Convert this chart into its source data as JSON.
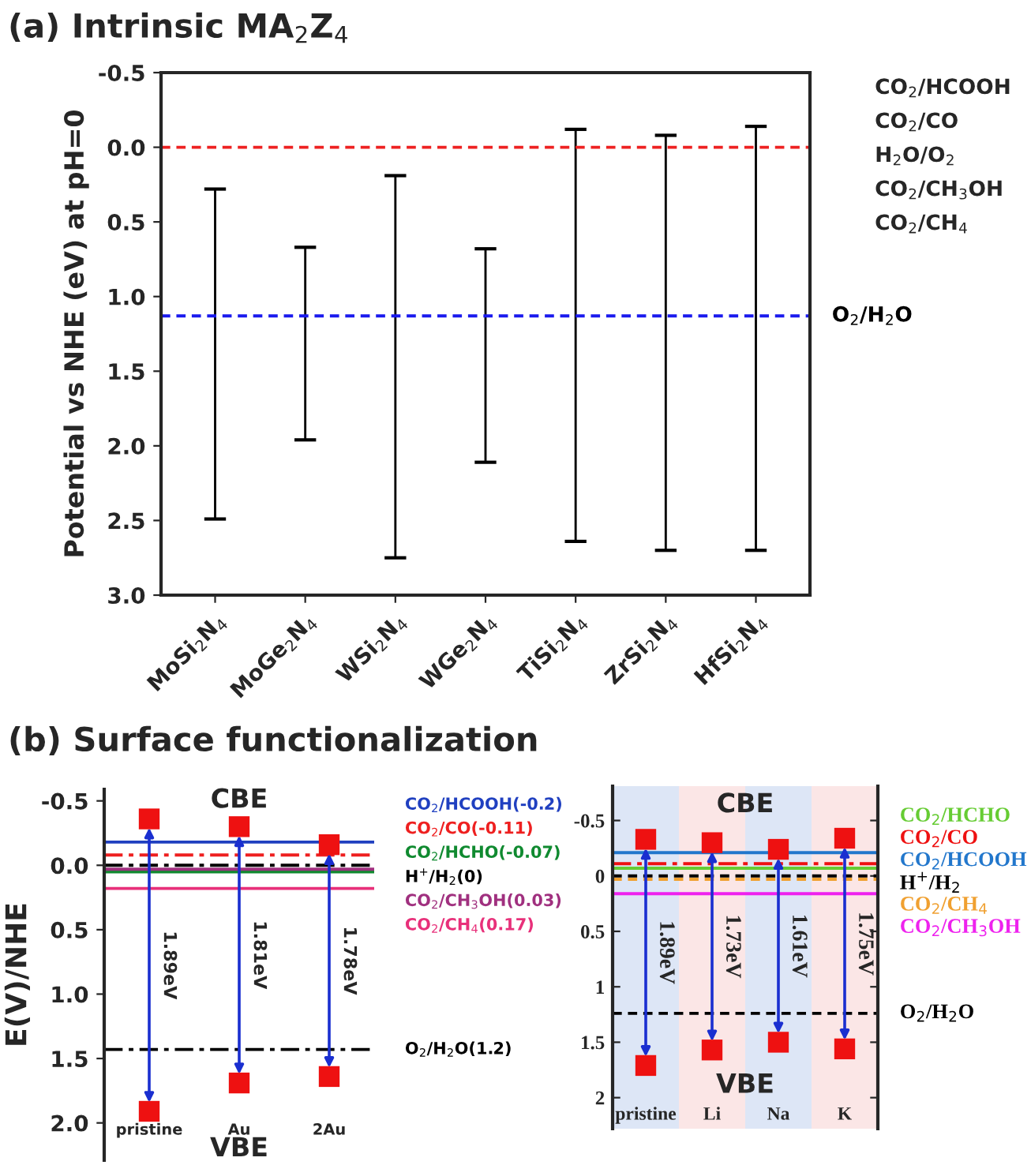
{
  "chart_data": [
    {
      "type": "bar",
      "title": "(a) Intrinsic MA$_{2}$Z$_{4}$",
      "ylabel": "Potential vs NHE (eV) at pH=0",
      "categories": [
        "MoSi$_{2}$N$_{4}$",
        "MoGe$_{2}$N$_{4}$",
        "WSi$_{2}$N$_{4}$",
        "WGe$_{2}$N$_{4}$",
        "TiSi$_{2}$N$_{4}$",
        "ZrSi$_{2}$N$_{4}$",
        "HfSi$_{2}$N$_{4}$"
      ],
      "base": [
        0.28,
        0.67,
        0.19,
        0.68,
        -0.12,
        -0.08,
        -0.14
      ],
      "values": [
        2.21,
        1.29,
        2.56,
        1.43,
        2.76,
        2.78,
        2.84
      ],
      "color": "#000000",
      "ylim": [
        3.0,
        -0.5
      ],
      "yticks": [
        {
          "value": -0.5,
          "label": "-0.5"
        },
        {
          "value": 0,
          "label": "0.0"
        },
        {
          "value": 0.5,
          "label": "0.5"
        },
        {
          "value": 1.0,
          "label": "1.0"
        },
        {
          "value": 1.5,
          "label": "1.5"
        },
        {
          "value": 2.0,
          "label": "2.0"
        },
        {
          "value": 2.5,
          "label": "2.5"
        },
        {
          "value": 3.0,
          "label": "3.0"
        }
      ],
      "ref_lines": [
        {
          "axis": "y",
          "value": 0,
          "color": "#ee2222",
          "line_style": "dashed"
        },
        {
          "axis": "y",
          "value": 1.13,
          "label": "O$_{2}$/H$_{2}$O",
          "color": "#1a1aee",
          "line_style": "dashed"
        }
      ],
      "annotations": [
        "CO$_{2}$/HCOOH",
        "CO$_{2}$/CO",
        "H$_{2}$O/O$_{2}$",
        "CO$_{2}$/CH$_{3}$OH",
        "CO$_{2}$/CH$_{4}$"
      ]
    },
    {
      "type": "scatter",
      "title": "(b) Surface functionalization",
      "ylabel": "E(V)/NHE",
      "categories": [
        "pristine",
        "Au",
        "2Au"
      ],
      "series": [
        {
          "color": "#ee1111",
          "values": [
            -0.36,
            -0.3,
            -0.16
          ]
        },
        {
          "color": "#ee1111",
          "values": [
            1.91,
            1.69,
            1.64
          ]
        }
      ],
      "marker": "square",
      "ylim": [
        2.29,
        -0.59
      ],
      "yticks": [
        {
          "value": -0.5,
          "label": "-0.5"
        },
        {
          "value": 0,
          "label": "0.0"
        },
        {
          "value": 0.5,
          "label": "0.5"
        },
        {
          "value": 1.0,
          "label": "1.0"
        },
        {
          "value": 1.5,
          "label": "1.5"
        },
        {
          "value": 2.0,
          "label": "2.0"
        }
      ],
      "ref_lines": [
        {
          "axis": "y",
          "value": -0.18,
          "label": "CO$_{2}$/HCOOH(-0.2)",
          "color": "#2040c0",
          "line_style": "solid"
        },
        {
          "axis": "y",
          "value": -0.08,
          "label": "CO$_{2}$/CO(-0.11)",
          "color": "#ee2020",
          "line_style": "dashdot"
        },
        {
          "axis": "y",
          "value": 0.05,
          "label": "CO$_{2}$/HCHO(-0.07)",
          "color": "#108a30",
          "line_style": "solid"
        },
        {
          "axis": "y",
          "value": 0,
          "label": "H$^{+}$/H$_{2}$(0)",
          "color": "#000000",
          "line_style": "dashdot"
        },
        {
          "axis": "y",
          "value": 0.03,
          "label": "CO$_{2}$/CH$_{3}$OH(0.03)",
          "color": "#a0307f",
          "line_style": "solid"
        },
        {
          "axis": "y",
          "value": 0.18,
          "label": "CO$_{2}$/CH$_{4}$(0.17)",
          "color": "#e8307a",
          "line_style": "solid"
        },
        {
          "axis": "y",
          "value": 1.43,
          "label": "O$_{2}$/H$_{2}$O(1.2)",
          "color": "#000000",
          "line_style": "dashdot"
        }
      ],
      "annotations": [
        "CBE",
        "VBE",
        "1.89eV",
        "1.81eV",
        "1.78eV"
      ]
    },
    {
      "type": "scatter",
      "categories": [
        "pristine",
        "Li",
        "Na",
        "K"
      ],
      "series": [
        {
          "color": "#ee1111",
          "values": [
            -0.33,
            -0.3,
            -0.24,
            -0.34
          ]
        },
        {
          "color": "#ee1111",
          "values": [
            1.71,
            1.57,
            1.5,
            1.56
          ]
        }
      ],
      "marker": "square",
      "ylim": [
        2.28,
        -0.81
      ],
      "yticks": [
        {
          "value": -0.5,
          "label": "-0.5"
        },
        {
          "value": 0,
          "label": "0"
        },
        {
          "value": 0.5,
          "label": "0.5"
        },
        {
          "value": 1,
          "label": "1"
        },
        {
          "value": 1.5,
          "label": "1.5"
        },
        {
          "value": 2,
          "label": "2"
        }
      ],
      "bands": [
        {
          "axis": "x",
          "from": "pristine",
          "to": "pristine",
          "color": "#dde6f6"
        },
        {
          "axis": "x",
          "from": "Li",
          "to": "Li",
          "color": "#fbe6e6"
        },
        {
          "axis": "x",
          "from": "Na",
          "to": "Na",
          "color": "#dde6f6"
        },
        {
          "axis": "x",
          "from": "K",
          "to": "K",
          "color": "#fbe6e6"
        }
      ],
      "ref_lines": [
        {
          "axis": "y",
          "value": -0.07,
          "label": "CO$_{2}$/HCHO",
          "color": "#66cc33",
          "line_style": "solid"
        },
        {
          "axis": "y",
          "value": -0.11,
          "label": "CO$_{2}$/CO",
          "color": "#ee1111",
          "line_style": "dashdot"
        },
        {
          "axis": "y",
          "value": -0.21,
          "label": "CO$_{2}$/HCOOH",
          "color": "#2277cc",
          "line_style": "solid"
        },
        {
          "axis": "y",
          "value": 0,
          "label": "H$^{+}$/H$_{2}$",
          "color": "#000000",
          "line_style": "dashed"
        },
        {
          "axis": "y",
          "value": 0.03,
          "label": "CO$_{2}$/CH$_{4}$",
          "color": "#f0a030",
          "line_style": "dashed"
        },
        {
          "axis": "y",
          "value": 0.16,
          "label": "CO$_{2}$/CH$_{3}$OH",
          "color": "#ee22ee",
          "line_style": "solid"
        },
        {
          "axis": "y",
          "value": 1.24,
          "label": "O$_{2}$/H$_{2}$O",
          "color": "#000000",
          "line_style": "dashed"
        }
      ],
      "annotations": [
        {
          "text": "CBE",
          "y": -0.64
        },
        {
          "text": "VBE",
          "y": 1.89
        },
        "1.89eV",
        "1.73eV",
        "1.61eV",
        "1.75eV"
      ]
    }
  ]
}
